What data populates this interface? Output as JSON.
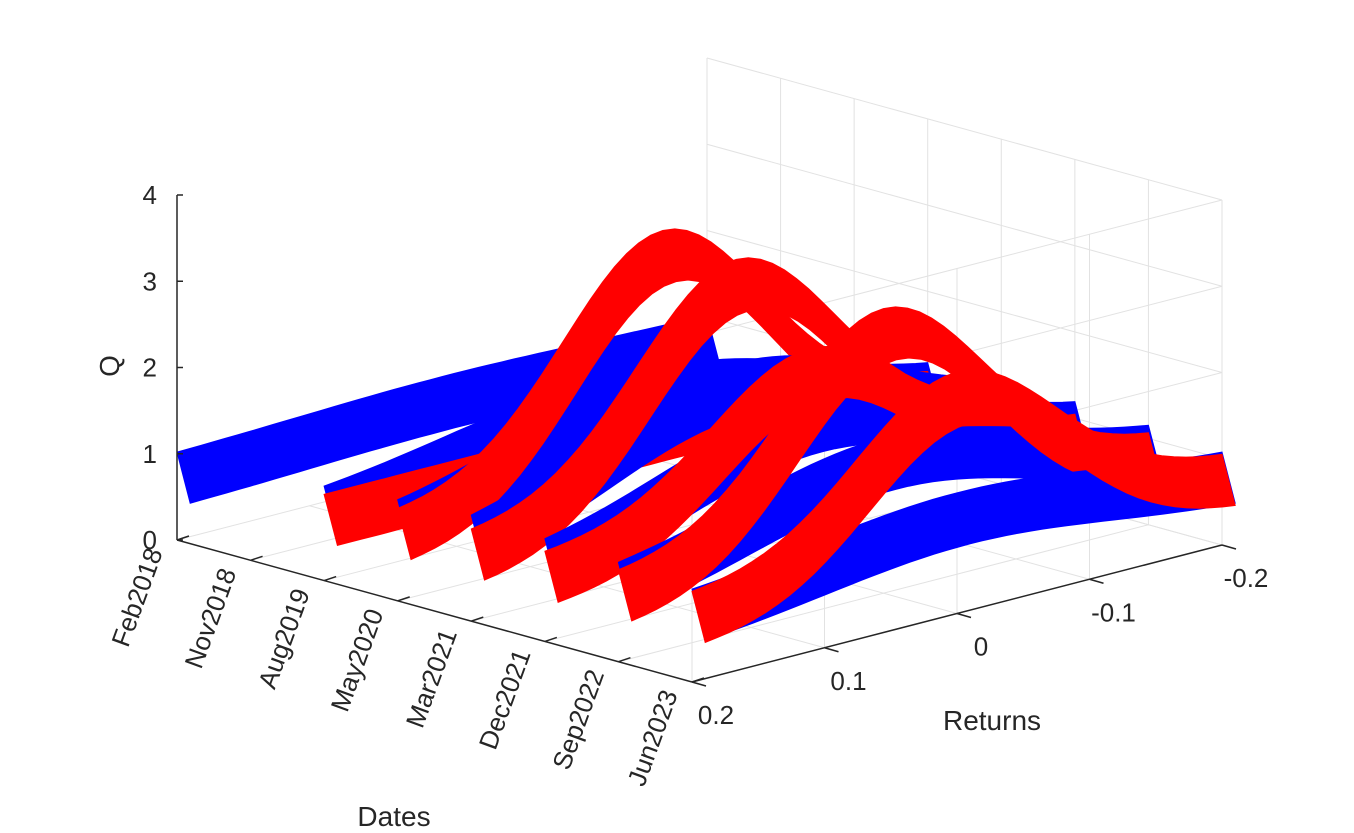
{
  "chart_data": {
    "type": "surface3d",
    "title": "",
    "xlabel": "Dates",
    "ylabel": "Returns",
    "zlabel": "Q",
    "x_ticks": [
      "Feb2018",
      "Nov2018",
      "Aug2019",
      "May2020",
      "Mar2021",
      "Dec2021",
      "Sep2022",
      "Jun2023"
    ],
    "y_ticks": [
      -0.2,
      -0.1,
      0,
      0.1,
      0.2
    ],
    "z_ticks": [
      0,
      1,
      2,
      3,
      4
    ],
    "xlim": [
      "Feb2018",
      "Jun2023"
    ],
    "ylim": [
      -0.2,
      0.2
    ],
    "zlim": [
      0,
      4
    ],
    "grid": true,
    "series": [
      {
        "color": "#0000ff",
        "x": [
          "Feb2018",
          "Aug2019",
          "May2020",
          "Mar2021",
          "Dec2021",
          "Sep2022",
          "Jun2023"
        ],
        "peak_q": [
          1.1,
          1.5,
          1.9,
          2.2,
          2.0,
          1.8,
          1.4
        ]
      },
      {
        "color": "#ff0000",
        "x": [
          "Aug2019",
          "May2020",
          "Mar2021",
          "Dec2021",
          "Sep2022",
          "Jun2023"
        ],
        "peak_q": [
          1.0,
          3.5,
          3.4,
          2.6,
          3.3,
          2.8
        ]
      }
    ]
  }
}
